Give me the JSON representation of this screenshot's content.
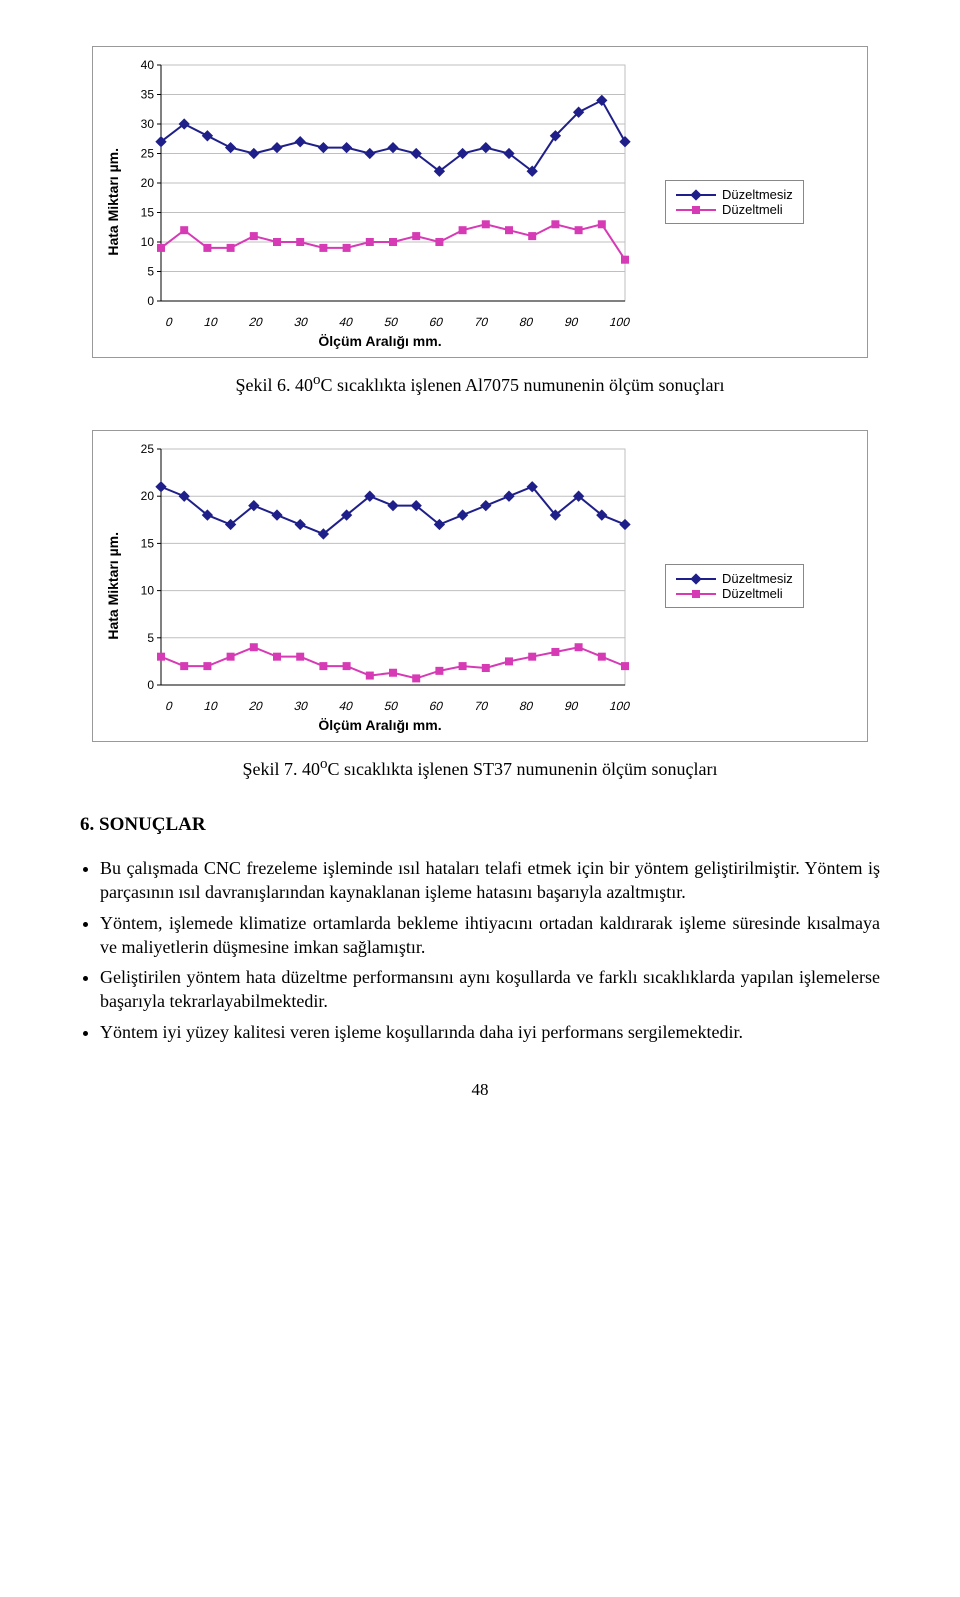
{
  "colors": {
    "series1": "#1f1f8a",
    "series2": "#d63ab5",
    "axis": "#000000",
    "grid": "#bfbfbf",
    "frame": "#9a9a9a"
  },
  "legend": {
    "item1": "Düzeltmesiz",
    "item2": "Düzeltmeli"
  },
  "axis": {
    "ylab": "Hata Miktarı µm.",
    "xlab": "Ölçüm Aralığı mm.",
    "xticks": [
      "0",
      "10",
      "20",
      "30",
      "40",
      "50",
      "60",
      "70",
      "80",
      "90",
      "100"
    ]
  },
  "chart1": {
    "ymin": 0,
    "ymax": 40,
    "ystep": 5,
    "yticks": [
      "0",
      "5",
      "10",
      "15",
      "20",
      "25",
      "30",
      "35",
      "40"
    ],
    "s1": [
      27,
      30,
      28,
      26,
      25,
      26,
      27,
      26,
      26,
      25,
      26,
      25,
      22,
      25,
      26,
      25,
      22,
      28,
      32,
      34,
      27
    ],
    "s2": [
      9,
      12,
      9,
      9,
      11,
      10,
      10,
      9,
      9,
      10,
      10,
      11,
      10,
      12,
      13,
      12,
      11,
      13,
      12,
      13,
      7
    ]
  },
  "chart2": {
    "ymin": 0,
    "ymax": 25,
    "ystep": 5,
    "yticks": [
      "0",
      "5",
      "10",
      "15",
      "20",
      "25"
    ],
    "s1": [
      21,
      20,
      18,
      17,
      19,
      18,
      17,
      16,
      18,
      20,
      19,
      19,
      17,
      18,
      19,
      20,
      21,
      18,
      20,
      18,
      17
    ],
    "s2": [
      3,
      2,
      2,
      3,
      4,
      3,
      3,
      2,
      2,
      1,
      1.3,
      0.7,
      1.5,
      2,
      1.8,
      2.5,
      3,
      3.5,
      4,
      3,
      2
    ]
  },
  "captions": {
    "c1_pre": "Şekil 6. 40",
    "c1_sup": "o",
    "c1_post": "C sıcaklıkta işlenen Al7075 numunenin ölçüm sonuçları",
    "c2_pre": "Şekil 7. 40",
    "c2_sup": "o",
    "c2_post": "C sıcaklıkta işlenen ST37 numunenin ölçüm sonuçları"
  },
  "section_title": "6. SONUÇLAR",
  "bullets": [
    "Bu çalışmada CNC frezeleme işleminde ısıl hataları telafi etmek için bir yöntem geliştirilmiştir. Yöntem iş parçasının ısıl davranışlarından kaynaklanan işleme hatasını başarıyla azaltmıştır.",
    "Yöntem, işlemede klimatize ortamlarda bekleme ihtiyacını ortadan kaldırarak işleme süresinde kısalmaya ve maliyetlerin düşmesine imkan sağlamıştır.",
    "Geliştirilen yöntem hata düzeltme performansını aynı koşullarda ve farklı sıcaklıklarda yapılan işlemelerse başarıyla tekrarlayabilmektedir.",
    "Yöntem iyi yüzey kalitesi veren işleme koşullarında daha iyi performans sergilemektedir."
  ],
  "page_number": "48"
}
